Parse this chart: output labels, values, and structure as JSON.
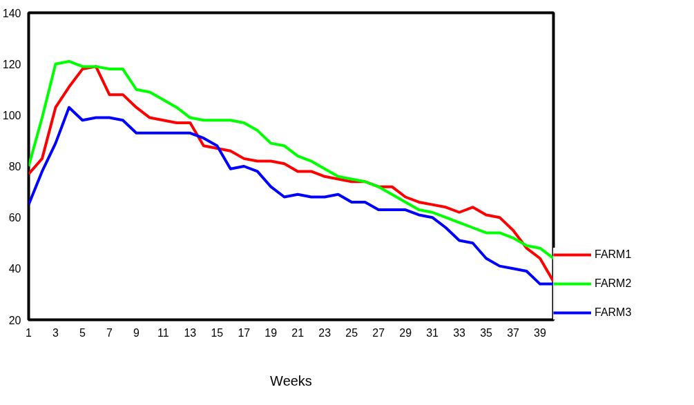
{
  "chart_data": {
    "type": "line",
    "xlabel": "Weeks",
    "x": [
      1,
      2,
      3,
      4,
      5,
      6,
      7,
      8,
      9,
      10,
      11,
      12,
      13,
      14,
      15,
      16,
      17,
      18,
      19,
      20,
      21,
      22,
      23,
      24,
      25,
      26,
      27,
      28,
      29,
      30,
      31,
      32,
      33,
      34,
      35,
      36,
      37,
      38,
      39,
      40
    ],
    "series": [
      {
        "name": "FARM1",
        "color": "#ff0000",
        "values": [
          77,
          83,
          103,
          111,
          118,
          119,
          108,
          108,
          103,
          99,
          98,
          97,
          97,
          88,
          87,
          86,
          83,
          82,
          82,
          81,
          78,
          78,
          76,
          75,
          74,
          74,
          72,
          72,
          68,
          66,
          65,
          64,
          62,
          64,
          61,
          60,
          55,
          48,
          44,
          35
        ]
      },
      {
        "name": "FARM2",
        "color": "#00ff00",
        "values": [
          80,
          99,
          120,
          121,
          119,
          119,
          118,
          118,
          110,
          109,
          106,
          103,
          99,
          98,
          98,
          98,
          97,
          94,
          89,
          88,
          84,
          82,
          79,
          76,
          75,
          74,
          72,
          69,
          66,
          63,
          62,
          60,
          58,
          56,
          54,
          54,
          52,
          49,
          48,
          44
        ]
      },
      {
        "name": "FARM3",
        "color": "#0000ff",
        "values": [
          65,
          78,
          89,
          103,
          98,
          99,
          99,
          98,
          93,
          93,
          93,
          93,
          93,
          91,
          88,
          79,
          80,
          78,
          72,
          68,
          69,
          68,
          68,
          69,
          66,
          66,
          63,
          63,
          63,
          61,
          60,
          56,
          51,
          50,
          44,
          41,
          40,
          39,
          34,
          34
        ]
      }
    ],
    "xlim": [
      1,
      40
    ],
    "xticks": [
      1,
      3,
      5,
      7,
      9,
      11,
      13,
      15,
      17,
      19,
      21,
      23,
      25,
      27,
      29,
      31,
      33,
      35,
      37,
      39
    ],
    "ylim": [
      20,
      140
    ],
    "yticks": [
      20,
      40,
      60,
      80,
      100,
      120,
      140
    ],
    "grid": false,
    "legend": "right",
    "marker": "none",
    "line_style": "solid"
  }
}
